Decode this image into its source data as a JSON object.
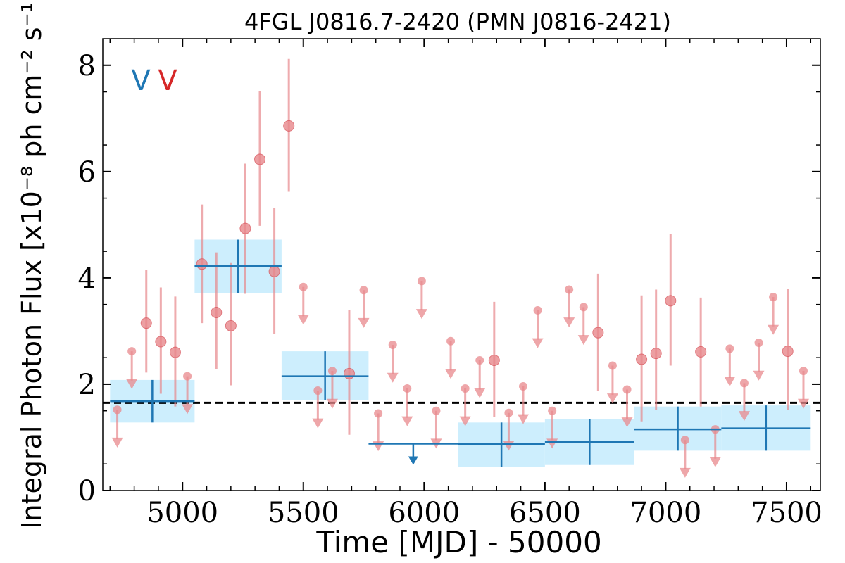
{
  "chart_data": {
    "type": "scatter",
    "title": "4FGL J0816.7-2420 (PMN J0816-2421)",
    "xlabel": "Time [MJD] - 50000",
    "ylabel": "Integral Photon Flux [x10⁻⁸ ph cm⁻² s⁻¹]",
    "xlim": [
      4670,
      7640
    ],
    "ylim": [
      0,
      8.5
    ],
    "x_ticks": [
      5000,
      5500,
      6000,
      6500,
      7000,
      7500
    ],
    "y_ticks": [
      0,
      2,
      4,
      6,
      8
    ],
    "x_tick_labels": [
      "5000",
      "5500",
      "6000",
      "6500",
      "7000",
      "7500"
    ],
    "y_tick_labels": [
      "0",
      "2",
      "4",
      "6",
      "8"
    ],
    "grid": false,
    "mean_flux": 1.65,
    "variability_markers": [
      {
        "text": "V",
        "color": "#1f77b4"
      },
      {
        "text": "V",
        "color": "#d62728"
      }
    ],
    "series": [
      {
        "kind": "yearly_bins",
        "color": "#1f77b4",
        "band_color": "#cdeefd",
        "points": [
          {
            "x_start": 4700,
            "x_end": 5050,
            "y": 1.68,
            "ylo": 1.28,
            "yhi": 2.08
          },
          {
            "x_start": 5050,
            "x_end": 5410,
            "y": 4.22,
            "ylo": 3.72,
            "yhi": 4.72
          },
          {
            "x_start": 5410,
            "x_end": 5770,
            "y": 2.15,
            "ylo": 1.7,
            "yhi": 2.62
          },
          {
            "x_start": 5770,
            "x_end": 6140,
            "y": 0.88,
            "upper_limit": true
          },
          {
            "x_start": 6140,
            "x_end": 6500,
            "y": 0.87,
            "ylo": 0.45,
            "yhi": 1.28
          },
          {
            "x_start": 6500,
            "x_end": 6870,
            "y": 0.91,
            "ylo": 0.48,
            "yhi": 1.35
          },
          {
            "x_start": 6870,
            "x_end": 7230,
            "y": 1.15,
            "ylo": 0.75,
            "yhi": 1.58
          },
          {
            "x_start": 7230,
            "x_end": 7600,
            "y": 1.17,
            "ylo": 0.75,
            "yhi": 1.6
          }
        ]
      },
      {
        "kind": "monthly_bins",
        "color": "#e8888c",
        "points": [
          {
            "x": 4730,
            "y": 1.52,
            "upper_limit": true
          },
          {
            "x": 4790,
            "y": 2.62,
            "upper_limit": true
          },
          {
            "x": 4850,
            "y": 3.15,
            "ylo": 2.22,
            "yhi": 4.15
          },
          {
            "x": 4910,
            "y": 2.8,
            "ylo": 1.82,
            "yhi": 3.82
          },
          {
            "x": 4970,
            "y": 2.6,
            "ylo": 1.58,
            "yhi": 3.65
          },
          {
            "x": 5020,
            "y": 2.15,
            "upper_limit": true
          },
          {
            "x": 5080,
            "y": 4.26,
            "ylo": 3.15,
            "yhi": 5.38
          },
          {
            "x": 5140,
            "y": 3.35,
            "ylo": 2.28,
            "yhi": 4.48
          },
          {
            "x": 5200,
            "y": 3.1,
            "ylo": 1.98,
            "yhi": 4.28
          },
          {
            "x": 5260,
            "y": 4.93,
            "ylo": 3.7,
            "yhi": 6.15
          },
          {
            "x": 5320,
            "y": 6.23,
            "ylo": 4.98,
            "yhi": 7.52
          },
          {
            "x": 5380,
            "y": 4.12,
            "ylo": 2.95,
            "yhi": 5.32
          },
          {
            "x": 5440,
            "y": 6.86,
            "ylo": 5.62,
            "yhi": 8.12
          },
          {
            "x": 5500,
            "y": 3.83,
            "upper_limit": true
          },
          {
            "x": 5560,
            "y": 1.88,
            "upper_limit": true
          },
          {
            "x": 5620,
            "y": 2.25,
            "upper_limit": true
          },
          {
            "x": 5690,
            "y": 2.2,
            "ylo": 1.05,
            "yhi": 3.4
          },
          {
            "x": 5750,
            "y": 3.77,
            "upper_limit": true
          },
          {
            "x": 5810,
            "y": 1.45,
            "upper_limit": true
          },
          {
            "x": 5870,
            "y": 2.74,
            "upper_limit": true
          },
          {
            "x": 5930,
            "y": 1.92,
            "upper_limit": true
          },
          {
            "x": 5990,
            "y": 3.94,
            "upper_limit": true
          },
          {
            "x": 6050,
            "y": 1.5,
            "upper_limit": true
          },
          {
            "x": 6110,
            "y": 2.81,
            "upper_limit": true
          },
          {
            "x": 6170,
            "y": 1.92,
            "upper_limit": true
          },
          {
            "x": 6230,
            "y": 2.45,
            "upper_limit": true
          },
          {
            "x": 6290,
            "y": 2.45,
            "ylo": 1.38,
            "yhi": 3.55
          },
          {
            "x": 6350,
            "y": 1.46,
            "upper_limit": true
          },
          {
            "x": 6410,
            "y": 1.96,
            "upper_limit": true
          },
          {
            "x": 6470,
            "y": 3.39,
            "upper_limit": true
          },
          {
            "x": 6530,
            "y": 1.5,
            "upper_limit": true
          },
          {
            "x": 6600,
            "y": 3.78,
            "upper_limit": true
          },
          {
            "x": 6660,
            "y": 3.45,
            "upper_limit": true
          },
          {
            "x": 6720,
            "y": 2.97,
            "ylo": 1.88,
            "yhi": 4.08
          },
          {
            "x": 6780,
            "y": 2.35,
            "upper_limit": true
          },
          {
            "x": 6840,
            "y": 1.9,
            "upper_limit": true
          },
          {
            "x": 6900,
            "y": 2.47,
            "ylo": 1.3,
            "yhi": 3.67
          },
          {
            "x": 6960,
            "y": 2.58,
            "ylo": 1.52,
            "yhi": 3.78
          },
          {
            "x": 7020,
            "y": 3.57,
            "ylo": 2.35,
            "yhi": 4.82
          },
          {
            "x": 7080,
            "y": 0.95,
            "upper_limit": true
          },
          {
            "x": 7145,
            "y": 2.61,
            "ylo": 1.58,
            "yhi": 3.63
          },
          {
            "x": 7205,
            "y": 1.15,
            "upper_limit": true
          },
          {
            "x": 7265,
            "y": 2.67,
            "upper_limit": true
          },
          {
            "x": 7325,
            "y": 2.02,
            "upper_limit": true
          },
          {
            "x": 7385,
            "y": 2.78,
            "upper_limit": true
          },
          {
            "x": 7445,
            "y": 3.64,
            "upper_limit": true
          },
          {
            "x": 7505,
            "y": 2.62,
            "ylo": 1.52,
            "yhi": 3.8
          },
          {
            "x": 7570,
            "y": 2.25,
            "upper_limit": true
          }
        ]
      }
    ]
  }
}
